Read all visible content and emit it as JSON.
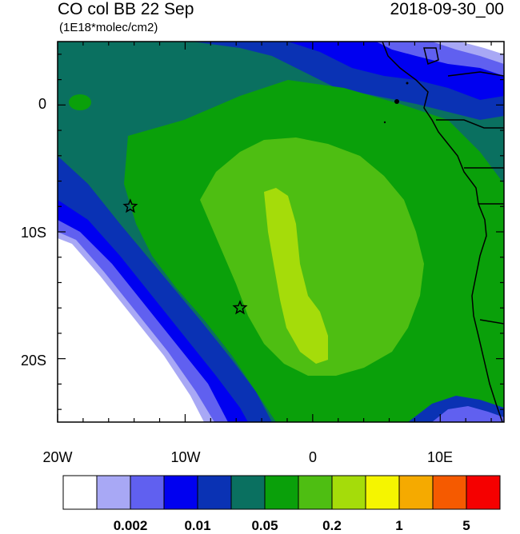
{
  "title": {
    "left": "CO col BB 22 Sep",
    "right": "2018-09-30_00",
    "units": "(1E18*molec/cm2)"
  },
  "axes": {
    "lat_labels": [
      "0",
      "10S",
      "20S"
    ],
    "lon_labels": [
      "20W",
      "10W",
      "0",
      "10E"
    ]
  },
  "map_extent": {
    "lon": [
      -20,
      15
    ],
    "lat": [
      -25,
      5
    ]
  },
  "markers": [
    {
      "name": "star-marker-north",
      "lon": -14.3,
      "lat": -8.0
    },
    {
      "name": "star-marker-south",
      "lon": -5.7,
      "lat": -16.0
    }
  ],
  "colorbar": {
    "colors": [
      "#ffffff",
      "#a8a8f5",
      "#6060f0",
      "#0000f0",
      "#0a32b4",
      "#0a7060",
      "#0aa00a",
      "#4ebe12",
      "#a5dc0a",
      "#f5f500",
      "#f5aa00",
      "#f55a00",
      "#f50000"
    ],
    "labels": [
      "0.002",
      "0.01",
      "0.05",
      "0.2",
      "1",
      "5"
    ]
  },
  "palette": {
    "land_outline": "#000000",
    "background": "#ffffff"
  }
}
